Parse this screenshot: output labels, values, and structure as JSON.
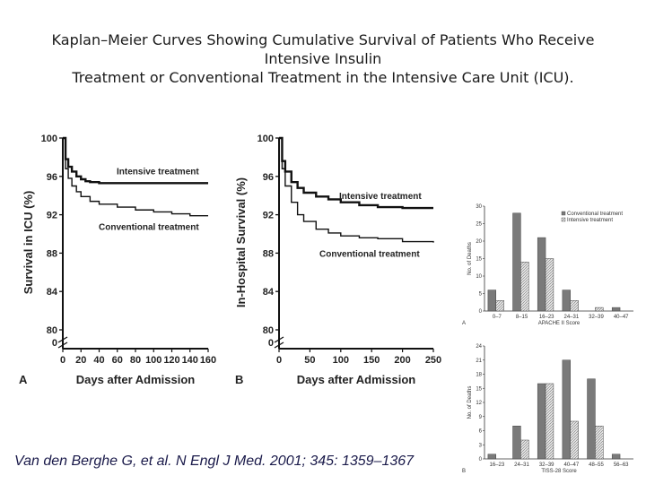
{
  "title_lines": [
    "Kaplan–Meier Curves Showing Cumulative Survival of Patients Who Receive",
    "Intensive Insulin",
    "Treatment or Conventional Treatment in the Intensive Care Unit (ICU)."
  ],
  "caption": "Van den Berghe G, et al. N Engl J Med. 2001; 345: 1359–1367",
  "colors": {
    "dark_bar": "#7a7a7a",
    "light_bar": "#e6e6e6",
    "curve": "#111111"
  },
  "chart_data": [
    {
      "type": "line",
      "panel_label": "A",
      "xlabel": "Days after Admission",
      "ylabel": "Survival in ICU (%)",
      "xticks": [
        0,
        20,
        40,
        60,
        80,
        100,
        120,
        140,
        160
      ],
      "yticks": [
        100,
        96,
        92,
        88,
        84,
        80
      ],
      "y_break_label": "0",
      "xlim": [
        0,
        160
      ],
      "ylim": [
        80,
        100
      ],
      "series": [
        {
          "name": "Intensive treatment",
          "x": [
            0,
            3,
            6,
            10,
            15,
            20,
            25,
            30,
            40,
            60,
            100,
            160
          ],
          "y": [
            100,
            97.8,
            97,
            96.5,
            96,
            95.7,
            95.5,
            95.4,
            95.3,
            95.3,
            95.3,
            95.3
          ]
        },
        {
          "name": "Conventional treatment",
          "x": [
            0,
            3,
            6,
            10,
            15,
            20,
            30,
            40,
            60,
            80,
            100,
            120,
            140,
            160
          ],
          "y": [
            100,
            96.8,
            95.8,
            95,
            94.4,
            93.9,
            93.4,
            93.1,
            92.8,
            92.5,
            92.3,
            92.1,
            91.9,
            91.9
          ]
        }
      ]
    },
    {
      "type": "line",
      "panel_label": "B",
      "xlabel": "Days after Admission",
      "ylabel": "In-Hospital Survival (%)",
      "xticks": [
        0,
        50,
        100,
        150,
        200,
        250
      ],
      "yticks": [
        100,
        96,
        92,
        88,
        84,
        80
      ],
      "y_break_label": "0",
      "xlim": [
        0,
        250
      ],
      "ylim": [
        80,
        100
      ],
      "series": [
        {
          "name": "Intensive treatment",
          "x": [
            0,
            5,
            10,
            20,
            30,
            40,
            60,
            80,
            100,
            130,
            160,
            200,
            250
          ],
          "y": [
            100,
            97.6,
            96.5,
            95.4,
            94.8,
            94.3,
            93.9,
            93.6,
            93.3,
            93,
            92.8,
            92.7,
            92.7
          ]
        },
        {
          "name": "Conventional treatment",
          "x": [
            0,
            5,
            10,
            20,
            30,
            40,
            60,
            80,
            100,
            130,
            160,
            200,
            250
          ],
          "y": [
            100,
            96.8,
            95,
            93.3,
            92,
            91.3,
            90.5,
            90.1,
            89.8,
            89.6,
            89.5,
            89.2,
            89.1
          ]
        }
      ]
    },
    {
      "type": "bar",
      "panel_label": "A",
      "xlabel": "APACHE II Score",
      "ylabel": "No. of Deaths",
      "categories": [
        "0–7",
        "8–15",
        "16–23",
        "24–31",
        "32–39",
        "40–47"
      ],
      "yticks": [
        0,
        5,
        10,
        15,
        20,
        25,
        30
      ],
      "ylim": [
        0,
        30
      ],
      "series": [
        {
          "name": "Conventional treatment",
          "values": [
            6,
            28,
            21,
            6,
            0,
            1
          ]
        },
        {
          "name": "Intensive treatment",
          "values": [
            3,
            14,
            15,
            3,
            1,
            0
          ]
        }
      ]
    },
    {
      "type": "bar",
      "panel_label": "B",
      "xlabel": "TISS-28 Score",
      "ylabel": "No. of Deaths",
      "categories": [
        "16–23",
        "24–31",
        "32–39",
        "40–47",
        "48–55",
        "56–63"
      ],
      "yticks": [
        0,
        3,
        6,
        9,
        12,
        15,
        18,
        21,
        24
      ],
      "ylim": [
        0,
        24
      ],
      "series": [
        {
          "name": "Conventional treatment",
          "values": [
            1,
            7,
            16,
            21,
            17,
            1
          ]
        },
        {
          "name": "Intensive treatment",
          "values": [
            0,
            4,
            16,
            8,
            7,
            0
          ]
        }
      ]
    }
  ]
}
